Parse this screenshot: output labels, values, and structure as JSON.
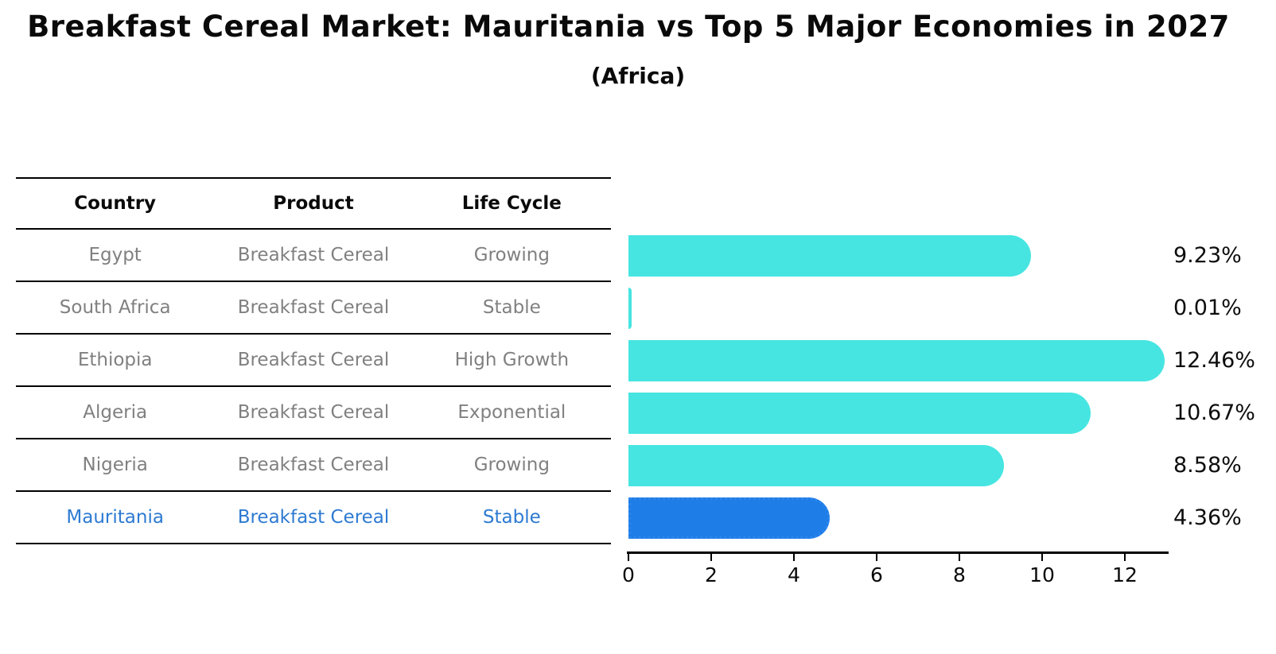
{
  "title": "Breakfast Cereal Market: Mauritania vs Top 5 Major Economies in 2027",
  "subtitle": "(Africa)",
  "table": {
    "headers": [
      "Country",
      "Product",
      "Life Cycle"
    ],
    "rows": [
      {
        "country": "Egypt",
        "product": "Breakfast Cereal",
        "life_cycle": "Growing",
        "highlight": false
      },
      {
        "country": "South Africa",
        "product": "Breakfast Cereal",
        "life_cycle": "Stable",
        "highlight": false
      },
      {
        "country": "Ethiopia",
        "product": "Breakfast Cereal",
        "life_cycle": "High Growth",
        "highlight": false
      },
      {
        "country": "Algeria",
        "product": "Breakfast Cereal",
        "life_cycle": "Exponential",
        "highlight": false
      },
      {
        "country": "Nigeria",
        "product": "Breakfast Cereal",
        "life_cycle": "Growing",
        "highlight": false
      },
      {
        "country": "Mauritania",
        "product": "Breakfast Cereal",
        "life_cycle": "Stable",
        "highlight": true
      }
    ]
  },
  "chart_data": {
    "type": "bar",
    "orientation": "horizontal",
    "title": "Breakfast Cereal Market: Mauritania vs Top 5 Major Economies in 2027",
    "subtitle": "(Africa)",
    "categories": [
      "Egypt",
      "South Africa",
      "Ethiopia",
      "Algeria",
      "Nigeria",
      "Mauritania"
    ],
    "values": [
      9.23,
      0.01,
      12.46,
      10.67,
      8.58,
      4.36
    ],
    "value_labels": [
      "9.23%",
      "0.01%",
      "12.46%",
      "10.67%",
      "8.58%",
      "4.36%"
    ],
    "xlabel": "",
    "ylabel": "",
    "xlim": [
      0,
      13.1
    ],
    "xticks": [
      0,
      2,
      4,
      6,
      8,
      10,
      12
    ],
    "grid": false,
    "legend": false,
    "highlight_index": 5,
    "highlight_category": "Mauritania"
  },
  "colors": {
    "bar": "#47e5e1",
    "highlight_bar": "#1f7de8",
    "highlight_bar_border": "#2b86ec",
    "row_text": "#808080",
    "highlight_text": "#2d7ad2",
    "axis": "#000000",
    "label_text": "#0d0d0d"
  }
}
